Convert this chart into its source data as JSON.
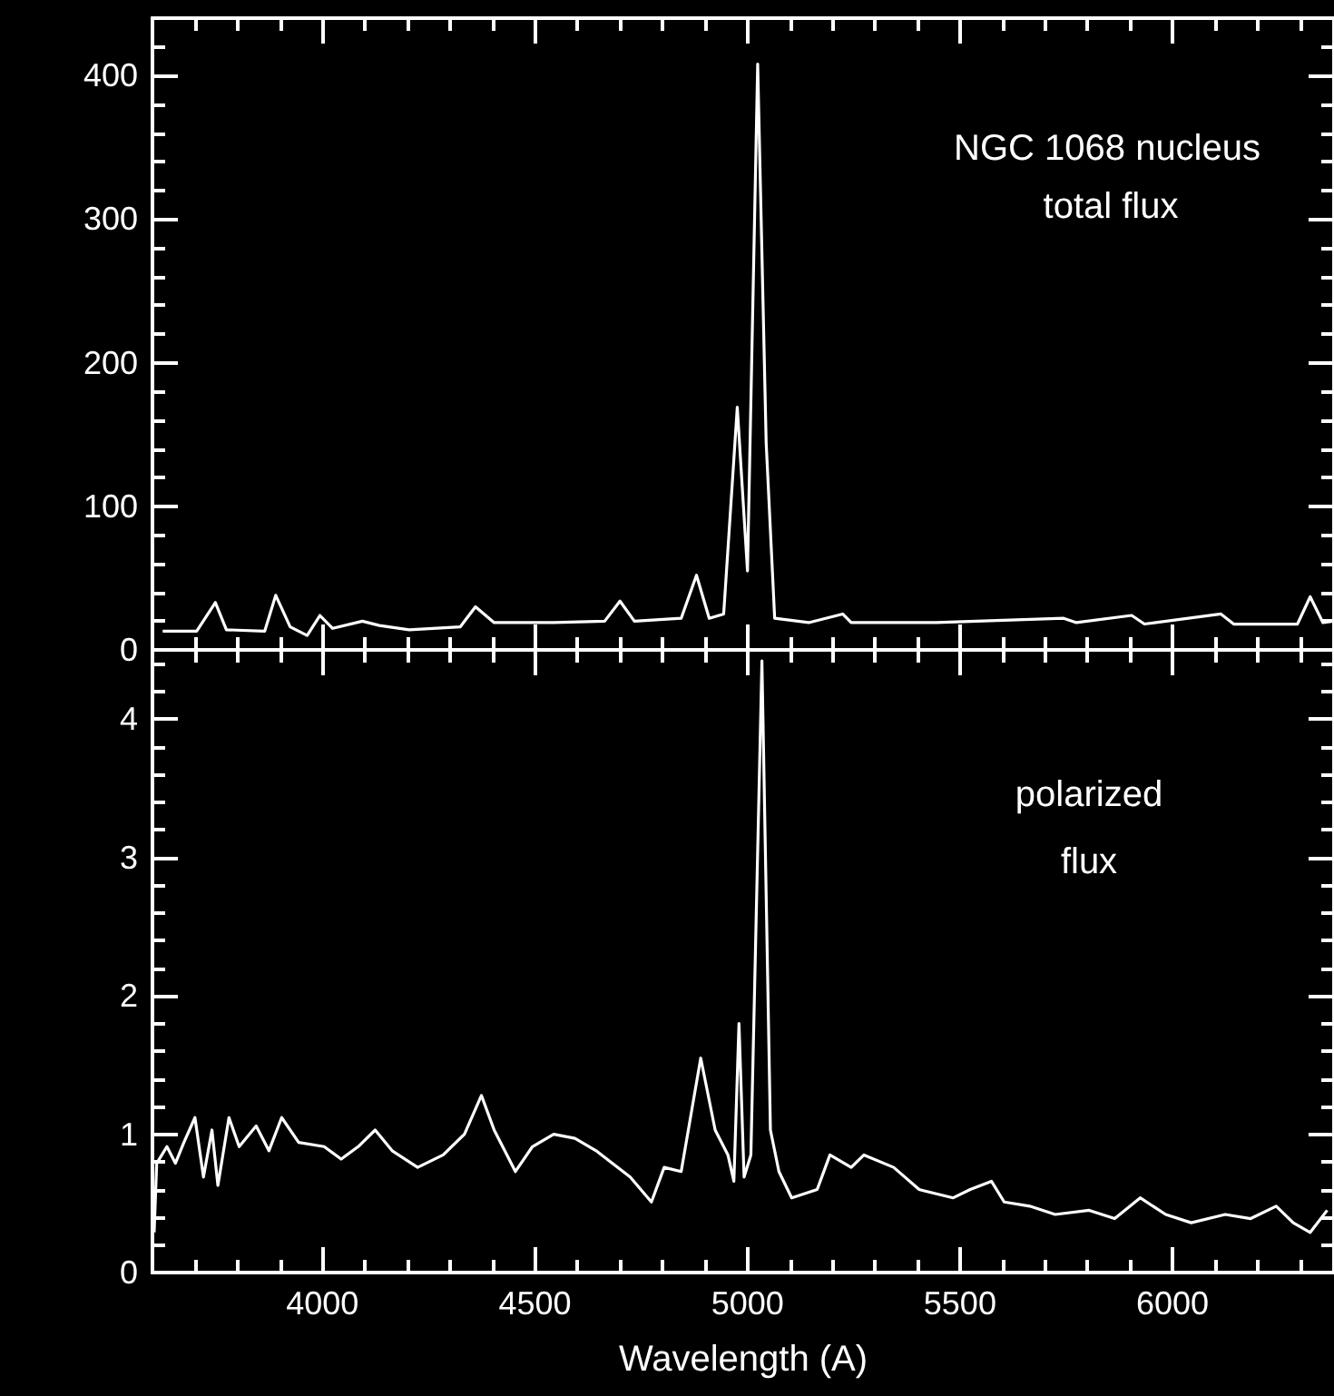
{
  "chart_data": [
    {
      "type": "line",
      "annotations": [
        "NGC 1068 nucleus",
        "total flux"
      ],
      "x": [
        3624,
        3704,
        3748,
        3774,
        3864,
        3890,
        3924,
        3964,
        3994,
        4024,
        4094,
        4134,
        4204,
        4324,
        4360,
        4404,
        4544,
        4664,
        4700,
        4734,
        4844,
        4880,
        4910,
        4944,
        4976,
        5000,
        5024,
        5044,
        5064,
        5144,
        5224,
        5244,
        5444,
        5744,
        5774,
        5904,
        5934,
        6114,
        6144,
        6294,
        6324,
        6354,
        6378
      ],
      "series": [
        {
          "color": "#ffffff",
          "values": [
            13,
            13,
            33,
            14,
            13,
            38,
            16,
            10,
            24,
            15,
            20,
            17,
            14,
            16,
            30,
            19,
            19,
            20,
            34,
            20,
            22,
            52,
            22,
            25,
            169,
            55,
            408,
            144,
            22,
            19,
            25,
            19,
            19,
            22,
            19,
            24,
            18,
            25,
            18,
            18,
            37,
            19,
            20
          ]
        }
      ],
      "xlim": [
        3600,
        6380
      ],
      "xticks": [
        {
          "value": 3700,
          "label": null
        },
        {
          "value": 3800,
          "label": null
        },
        {
          "value": 3900,
          "label": null
        },
        4000,
        {
          "value": 4100,
          "label": null
        },
        {
          "value": 4200,
          "label": null
        },
        {
          "value": 4300,
          "label": null
        },
        {
          "value": 4400,
          "label": null
        },
        4500,
        {
          "value": 4600,
          "label": null
        },
        {
          "value": 4700,
          "label": null
        },
        {
          "value": 4800,
          "label": null
        },
        {
          "value": 4900,
          "label": null
        },
        5000,
        {
          "value": 5100,
          "label": null
        },
        {
          "value": 5200,
          "label": null
        },
        {
          "value": 5300,
          "label": null
        },
        {
          "value": 5400,
          "label": null
        },
        5500,
        {
          "value": 5600,
          "label": null
        },
        {
          "value": 5700,
          "label": null
        },
        {
          "value": 5800,
          "label": null
        },
        {
          "value": 5900,
          "label": null
        },
        6000,
        {
          "value": 6100,
          "label": null
        },
        {
          "value": 6200,
          "label": null
        },
        {
          "value": 6300,
          "label": null
        }
      ],
      "ylim": [
        0,
        440
      ],
      "yticks": [
        0,
        {
          "value": 20,
          "label": null
        },
        {
          "value": 40,
          "label": null
        },
        {
          "value": 60,
          "label": null
        },
        {
          "value": 80,
          "label": null
        },
        100,
        {
          "value": 120,
          "label": null
        },
        {
          "value": 140,
          "label": null
        },
        {
          "value": 160,
          "label": null
        },
        {
          "value": 180,
          "label": null
        },
        200,
        {
          "value": 220,
          "label": null
        },
        {
          "value": 240,
          "label": null
        },
        {
          "value": 260,
          "label": null
        },
        {
          "value": 280,
          "label": null
        },
        300,
        {
          "value": 320,
          "label": null
        },
        {
          "value": 340,
          "label": null
        },
        {
          "value": 360,
          "label": null
        },
        {
          "value": 380,
          "label": null
        },
        400,
        {
          "value": 420,
          "label": null
        }
      ],
      "tick_labels": "y"
    },
    {
      "type": "line",
      "xlabel": "Wavelength (A)",
      "annotations": [
        "polarized",
        "flux"
      ],
      "x": [
        3604,
        3610,
        3634,
        3654,
        3674,
        3700,
        3720,
        3740,
        3754,
        3780,
        3804,
        3844,
        3874,
        3904,
        3944,
        4004,
        4044,
        4084,
        4124,
        4164,
        4224,
        4284,
        4334,
        4374,
        4404,
        4454,
        4494,
        4544,
        4594,
        4644,
        4724,
        4774,
        4804,
        4844,
        4890,
        4924,
        4954,
        4968,
        4980,
        4992,
        5008,
        5034,
        5054,
        5074,
        5104,
        5164,
        5194,
        5244,
        5274,
        5344,
        5404,
        5484,
        5524,
        5574,
        5604,
        5664,
        5724,
        5804,
        5864,
        5924,
        5984,
        6044,
        6124,
        6184,
        6244,
        6284,
        6324,
        6364
      ],
      "series": [
        {
          "color": "#ffffff",
          "values": [
            0.29,
            0.79,
            0.91,
            0.79,
            0.94,
            1.12,
            0.69,
            1.03,
            0.63,
            1.12,
            0.91,
            1.06,
            0.88,
            1.12,
            0.94,
            0.91,
            0.82,
            0.91,
            1.03,
            0.88,
            0.76,
            0.85,
            1.0,
            1.28,
            1.03,
            0.73,
            0.91,
            1.0,
            0.97,
            0.88,
            0.69,
            0.51,
            0.76,
            0.73,
            1.55,
            1.03,
            0.85,
            0.66,
            1.8,
            0.69,
            0.85,
            4.42,
            1.03,
            0.73,
            0.54,
            0.6,
            0.85,
            0.76,
            0.85,
            0.76,
            0.6,
            0.54,
            0.6,
            0.66,
            0.51,
            0.48,
            0.42,
            0.45,
            0.39,
            0.54,
            0.42,
            0.36,
            0.42,
            0.39,
            0.48,
            0.36,
            0.29,
            0.45
          ]
        }
      ],
      "xlim": [
        3600,
        6380
      ],
      "xticks": [
        {
          "value": 3700,
          "label": null
        },
        {
          "value": 3800,
          "label": null
        },
        {
          "value": 3900,
          "label": null
        },
        4000,
        {
          "value": 4100,
          "label": null
        },
        {
          "value": 4200,
          "label": null
        },
        {
          "value": 4300,
          "label": null
        },
        {
          "value": 4400,
          "label": null
        },
        4500,
        {
          "value": 4600,
          "label": null
        },
        {
          "value": 4700,
          "label": null
        },
        {
          "value": 4800,
          "label": null
        },
        {
          "value": 4900,
          "label": null
        },
        5000,
        {
          "value": 5100,
          "label": null
        },
        {
          "value": 5200,
          "label": null
        },
        {
          "value": 5300,
          "label": null
        },
        {
          "value": 5400,
          "label": null
        },
        5500,
        {
          "value": 5600,
          "label": null
        },
        {
          "value": 5700,
          "label": null
        },
        {
          "value": 5800,
          "label": null
        },
        {
          "value": 5900,
          "label": null
        },
        6000,
        {
          "value": 6100,
          "label": null
        },
        {
          "value": 6200,
          "label": null
        },
        {
          "value": 6300,
          "label": null
        }
      ],
      "ylim": [
        0,
        4.5
      ],
      "yticks": [
        0,
        {
          "value": 0.2,
          "label": null
        },
        {
          "value": 0.4,
          "label": null
        },
        {
          "value": 0.6,
          "label": null
        },
        {
          "value": 0.8,
          "label": null
        },
        1,
        {
          "value": 1.2,
          "label": null
        },
        {
          "value": 1.4,
          "label": null
        },
        {
          "value": 1.6,
          "label": null
        },
        {
          "value": 1.8,
          "label": null
        },
        2,
        {
          "value": 2.2,
          "label": null
        },
        {
          "value": 2.4,
          "label": null
        },
        {
          "value": 2.6,
          "label": null
        },
        {
          "value": 2.8,
          "label": null
        },
        3,
        {
          "value": 3.2,
          "label": null
        },
        {
          "value": 3.4,
          "label": null
        },
        {
          "value": 3.6,
          "label": null
        },
        {
          "value": 3.8,
          "label": null
        },
        4,
        {
          "value": 4.2,
          "label": null
        },
        {
          "value": 4.4,
          "label": null
        }
      ]
    }
  ]
}
